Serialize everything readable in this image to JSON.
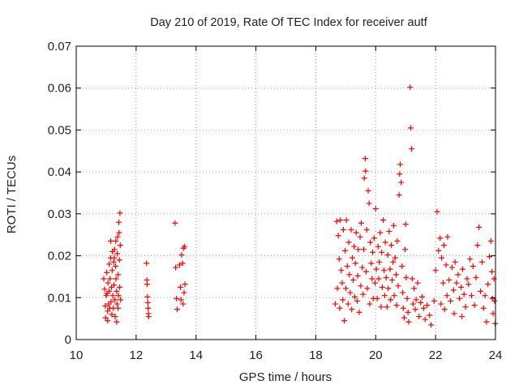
{
  "chart_data": {
    "type": "scatter",
    "title": "Day 210 of 2019, Rate Of TEC Index for receiver autf",
    "xlabel": "GPS time / hours",
    "ylabel": "ROTI / TECUs",
    "xlim": [
      10,
      24
    ],
    "ylim": [
      0,
      0.07
    ],
    "grid": true,
    "marker": "+",
    "color": "#ff0000",
    "xticks": [
      {
        "value": 10,
        "label": "10"
      },
      {
        "value": 12,
        "label": "12"
      },
      {
        "value": 14,
        "label": "14"
      },
      {
        "value": 16,
        "label": "16"
      },
      {
        "value": 18,
        "label": "18"
      },
      {
        "value": 20,
        "label": "20"
      },
      {
        "value": 22,
        "label": "22"
      },
      {
        "value": 24,
        "label": "24"
      }
    ],
    "yticks": [
      {
        "value": 0,
        "label": "0"
      },
      {
        "value": 0.01,
        "label": "0.01"
      },
      {
        "value": 0.02,
        "label": "0.02"
      },
      {
        "value": 0.03,
        "label": "0.03"
      },
      {
        "value": 0.04,
        "label": "0.04"
      },
      {
        "value": 0.05,
        "label": "0.05"
      },
      {
        "value": 0.06,
        "label": "0.06"
      },
      {
        "value": 0.07,
        "label": "0.07"
      }
    ],
    "series": [
      {
        "name": "ROTI",
        "points": [
          [
            10.92,
            0.0145
          ],
          [
            10.95,
            0.012
          ],
          [
            10.97,
            0.008
          ],
          [
            10.98,
            0.0052
          ],
          [
            11.0,
            0.0105
          ],
          [
            11.02,
            0.016
          ],
          [
            11.03,
            0.011
          ],
          [
            11.05,
            0.0068
          ],
          [
            11.06,
            0.0135
          ],
          [
            11.08,
            0.0085
          ],
          [
            11.1,
            0.018
          ],
          [
            11.1,
            0.0115
          ],
          [
            11.12,
            0.0075
          ],
          [
            11.13,
            0.0145
          ],
          [
            11.15,
            0.0195
          ],
          [
            11.16,
            0.009
          ],
          [
            11.18,
            0.0125
          ],
          [
            11.19,
            0.006
          ],
          [
            11.2,
            0.0165
          ],
          [
            11.21,
            0.021
          ],
          [
            11.22,
            0.0105
          ],
          [
            11.24,
            0.0075
          ],
          [
            11.25,
            0.0185
          ],
          [
            11.26,
            0.013
          ],
          [
            11.28,
            0.0215
          ],
          [
            11.29,
            0.0095
          ],
          [
            11.3,
            0.0055
          ],
          [
            11.31,
            0.0175
          ],
          [
            11.32,
            0.0235
          ],
          [
            11.33,
            0.0145
          ],
          [
            11.35,
            0.0115
          ],
          [
            11.36,
            0.0085
          ],
          [
            11.37,
            0.0205
          ],
          [
            11.38,
            0.0245
          ],
          [
            11.4,
            0.0155
          ],
          [
            11.41,
            0.0105
          ],
          [
            11.42,
            0.028
          ],
          [
            11.43,
            0.0255
          ],
          [
            11.44,
            0.019
          ],
          [
            11.45,
            0.0125
          ],
          [
            11.46,
            0.0302
          ],
          [
            11.47,
            0.0225
          ],
          [
            11.48,
            0.0095
          ],
          [
            11.05,
            0.0045
          ],
          [
            11.35,
            0.0042
          ],
          [
            11.15,
            0.0235
          ],
          [
            11.27,
            0.0195
          ],
          [
            11.4,
            0.0075
          ],
          [
            12.35,
            0.0182
          ],
          [
            12.36,
            0.0142
          ],
          [
            12.37,
            0.0132
          ],
          [
            12.38,
            0.0102
          ],
          [
            12.39,
            0.0088
          ],
          [
            12.4,
            0.0075
          ],
          [
            12.41,
            0.0062
          ],
          [
            12.42,
            0.0055
          ],
          [
            13.3,
            0.0278
          ],
          [
            13.32,
            0.0172
          ],
          [
            13.35,
            0.0098
          ],
          [
            13.37,
            0.0072
          ],
          [
            13.45,
            0.0178
          ],
          [
            13.48,
            0.0125
          ],
          [
            13.5,
            0.0095
          ],
          [
            13.52,
            0.0202
          ],
          [
            13.55,
            0.0182
          ],
          [
            13.57,
            0.0085
          ],
          [
            13.58,
            0.0218
          ],
          [
            13.6,
            0.0112
          ],
          [
            13.62,
            0.0222
          ],
          [
            13.63,
            0.0132
          ],
          [
            18.65,
            0.0085
          ],
          [
            18.7,
            0.0282
          ],
          [
            18.72,
            0.0122
          ],
          [
            18.75,
            0.0248
          ],
          [
            18.78,
            0.0192
          ],
          [
            18.8,
            0.0075
          ],
          [
            18.82,
            0.0285
          ],
          [
            18.85,
            0.0165
          ],
          [
            18.88,
            0.0135
          ],
          [
            18.9,
            0.0095
          ],
          [
            18.92,
            0.0262
          ],
          [
            18.95,
            0.0045
          ],
          [
            18.98,
            0.0212
          ],
          [
            19.0,
            0.0122
          ],
          [
            19.02,
            0.0285
          ],
          [
            19.05,
            0.0175
          ],
          [
            19.08,
            0.0085
          ],
          [
            19.1,
            0.0232
          ],
          [
            19.12,
            0.0155
          ],
          [
            19.15,
            0.0112
          ],
          [
            19.18,
            0.0262
          ],
          [
            19.2,
            0.0072
          ],
          [
            19.22,
            0.0195
          ],
          [
            19.25,
            0.0142
          ],
          [
            19.28,
            0.0222
          ],
          [
            19.3,
            0.0102
          ],
          [
            19.32,
            0.0182
          ],
          [
            19.35,
            0.0255
          ],
          [
            19.38,
            0.0092
          ],
          [
            19.4,
            0.0152
          ],
          [
            19.42,
            0.0215
          ],
          [
            19.45,
            0.0065
          ],
          [
            19.48,
            0.0245
          ],
          [
            19.5,
            0.0128
          ],
          [
            19.52,
            0.0278
          ],
          [
            19.55,
            0.0172
          ],
          [
            19.58,
            0.0108
          ],
          [
            19.6,
            0.0215
          ],
          [
            19.62,
            0.0385
          ],
          [
            19.65,
            0.0432
          ],
          [
            19.66,
            0.0402
          ],
          [
            19.68,
            0.0162
          ],
          [
            19.7,
            0.0262
          ],
          [
            19.72,
            0.0122
          ],
          [
            19.75,
            0.0355
          ],
          [
            19.78,
            0.0325
          ],
          [
            19.8,
            0.0085
          ],
          [
            19.82,
            0.0232
          ],
          [
            19.85,
            0.0182
          ],
          [
            19.88,
            0.0145
          ],
          [
            19.9,
            0.0208
          ],
          [
            19.92,
            0.0098
          ],
          [
            19.95,
            0.0242
          ],
          [
            19.98,
            0.0135
          ],
          [
            20.0,
            0.0312
          ],
          [
            20.02,
            0.0168
          ],
          [
            20.05,
            0.0098
          ],
          [
            20.08,
            0.0222
          ],
          [
            20.1,
            0.0145
          ],
          [
            20.12,
            0.0185
          ],
          [
            20.15,
            0.0255
          ],
          [
            20.18,
            0.0078
          ],
          [
            20.2,
            0.0208
          ],
          [
            20.22,
            0.0125
          ],
          [
            20.25,
            0.0285
          ],
          [
            20.28,
            0.0165
          ],
          [
            20.3,
            0.0105
          ],
          [
            20.32,
            0.0232
          ],
          [
            20.35,
            0.0148
          ],
          [
            20.38,
            0.0078
          ],
          [
            20.4,
            0.0202
          ],
          [
            20.42,
            0.0122
          ],
          [
            20.45,
            0.0258
          ],
          [
            20.48,
            0.0168
          ],
          [
            20.5,
            0.0095
          ],
          [
            20.52,
            0.0225
          ],
          [
            20.55,
            0.0142
          ],
          [
            20.58,
            0.0185
          ],
          [
            20.6,
            0.0272
          ],
          [
            20.62,
            0.0105
          ],
          [
            20.65,
            0.0195
          ],
          [
            20.68,
            0.0155
          ],
          [
            20.7,
            0.0082
          ],
          [
            20.72,
            0.0235
          ],
          [
            20.75,
            0.0128
          ],
          [
            20.78,
            0.0345
          ],
          [
            20.8,
            0.0395
          ],
          [
            20.82,
            0.0418
          ],
          [
            20.85,
            0.0375
          ],
          [
            20.88,
            0.0175
          ],
          [
            20.9,
            0.0112
          ],
          [
            20.92,
            0.0075
          ],
          [
            20.95,
            0.0052
          ],
          [
            20.98,
            0.0215
          ],
          [
            21.0,
            0.0275
          ],
          [
            21.02,
            0.0148
          ],
          [
            21.05,
            0.0098
          ],
          [
            21.08,
            0.0065
          ],
          [
            21.1,
            0.0042
          ],
          [
            21.15,
            0.0602
          ],
          [
            21.17,
            0.0505
          ],
          [
            21.2,
            0.0455
          ],
          [
            21.22,
            0.0145
          ],
          [
            21.25,
            0.0085
          ],
          [
            21.28,
            0.0122
          ],
          [
            21.32,
            0.0072
          ],
          [
            21.35,
            0.0095
          ],
          [
            21.4,
            0.0135
          ],
          [
            21.45,
            0.0055
          ],
          [
            21.5,
            0.0088
          ],
          [
            21.55,
            0.0102
          ],
          [
            21.6,
            0.0075
          ],
          [
            21.65,
            0.0048
          ],
          [
            21.72,
            0.0082
          ],
          [
            21.8,
            0.0058
          ],
          [
            21.85,
            0.0035
          ],
          [
            21.95,
            0.0092
          ],
          [
            22.0,
            0.0165
          ],
          [
            22.05,
            0.0305
          ],
          [
            22.1,
            0.0212
          ],
          [
            22.15,
            0.0242
          ],
          [
            22.18,
            0.0085
          ],
          [
            22.2,
            0.0195
          ],
          [
            22.25,
            0.0135
          ],
          [
            22.28,
            0.0225
          ],
          [
            22.3,
            0.0072
          ],
          [
            22.35,
            0.0178
          ],
          [
            22.38,
            0.0105
          ],
          [
            22.4,
            0.0245
          ],
          [
            22.45,
            0.0142
          ],
          [
            22.5,
            0.0092
          ],
          [
            22.55,
            0.0172
          ],
          [
            22.6,
            0.0118
          ],
          [
            22.62,
            0.0062
          ],
          [
            22.65,
            0.0185
          ],
          [
            22.7,
            0.0135
          ],
          [
            22.75,
            0.0155
          ],
          [
            22.8,
            0.0098
          ],
          [
            22.85,
            0.0125
          ],
          [
            22.88,
            0.0055
          ],
          [
            22.9,
            0.0168
          ],
          [
            22.95,
            0.0108
          ],
          [
            23.0,
            0.0078
          ],
          [
            23.05,
            0.0145
          ],
          [
            23.1,
            0.0132
          ],
          [
            23.15,
            0.0192
          ],
          [
            23.2,
            0.0105
          ],
          [
            23.25,
            0.0175
          ],
          [
            23.3,
            0.0082
          ],
          [
            23.35,
            0.0148
          ],
          [
            23.4,
            0.0225
          ],
          [
            23.45,
            0.0268
          ],
          [
            23.5,
            0.0115
          ],
          [
            23.55,
            0.0185
          ],
          [
            23.6,
            0.0075
          ],
          [
            23.65,
            0.0105
          ],
          [
            23.7,
            0.0042
          ],
          [
            23.75,
            0.0132
          ],
          [
            23.8,
            0.0198
          ],
          [
            23.85,
            0.0235
          ],
          [
            23.88,
            0.0162
          ],
          [
            23.9,
            0.0098
          ],
          [
            23.92,
            0.0062
          ],
          [
            23.95,
            0.0145
          ],
          [
            23.97,
            0.0092
          ],
          [
            23.99,
            0.0038
          ]
        ]
      }
    ]
  }
}
